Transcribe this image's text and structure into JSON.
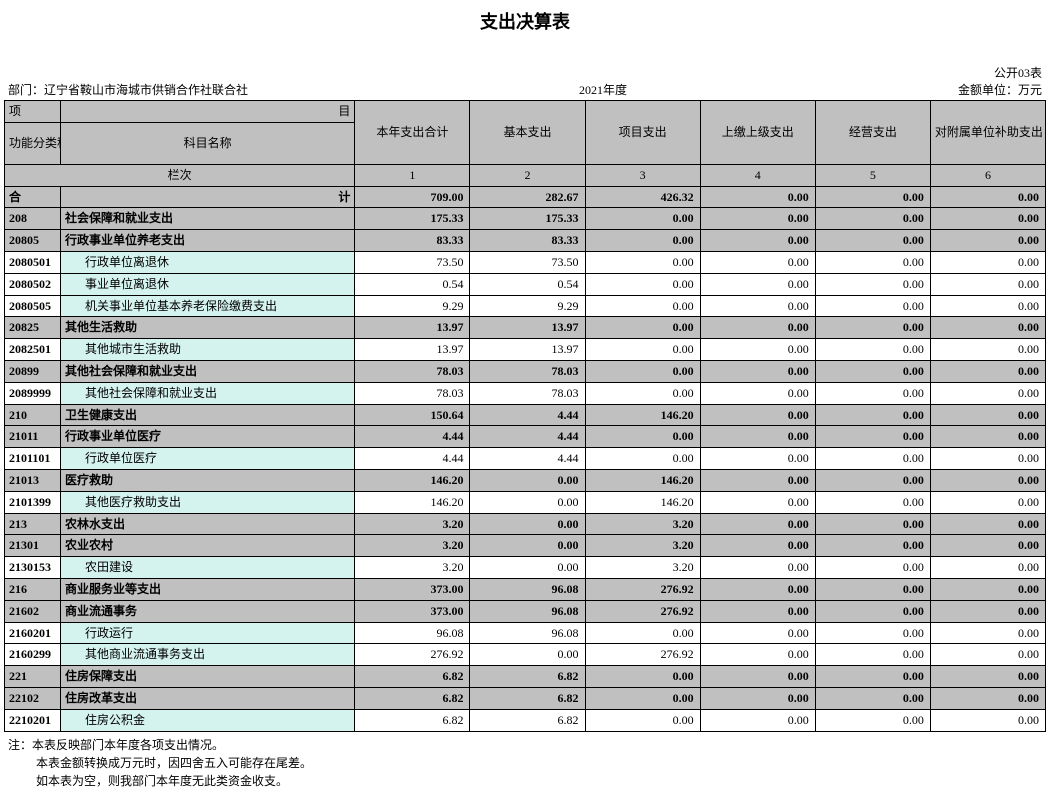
{
  "title": "支出决算表",
  "meta": {
    "top_right": "公开03表",
    "dept_label": "部门：",
    "dept_value": "辽宁省鞍山市海城市供销合作社联合社",
    "year": "2021年度",
    "unit": "金额单位：万元"
  },
  "header": {
    "project_row": "项",
    "project_row_right": "目",
    "code_label": "功能分类科目编码",
    "name_label": "科目名称",
    "cols": [
      "本年支出合计",
      "基本支出",
      "项目支出",
      "上缴上级支出",
      "经营支出",
      "对附属单位补助支出"
    ],
    "lane_label": "栏次",
    "lane_nums": [
      "1",
      "2",
      "3",
      "4",
      "5",
      "6"
    ],
    "sum_left": "合",
    "sum_right": "计"
  },
  "sum_values": [
    "709.00",
    "282.67",
    "426.32",
    "0.00",
    "0.00",
    "0.00"
  ],
  "rows": [
    {
      "code": "208",
      "name": "社会保障和就业支出",
      "indent": 0,
      "style": "gray",
      "vals": [
        "175.33",
        "175.33",
        "0.00",
        "0.00",
        "0.00",
        "0.00"
      ]
    },
    {
      "code": "20805",
      "name": "行政事业单位养老支出",
      "indent": 0,
      "style": "gray",
      "vals": [
        "83.33",
        "83.33",
        "0.00",
        "0.00",
        "0.00",
        "0.00"
      ]
    },
    {
      "code": "2080501",
      "name": "行政单位离退休",
      "indent": 1,
      "style": "detail",
      "vals": [
        "73.50",
        "73.50",
        "0.00",
        "0.00",
        "0.00",
        "0.00"
      ]
    },
    {
      "code": "2080502",
      "name": "事业单位离退休",
      "indent": 1,
      "style": "detail",
      "vals": [
        "0.54",
        "0.54",
        "0.00",
        "0.00",
        "0.00",
        "0.00"
      ]
    },
    {
      "code": "2080505",
      "name": "机关事业单位基本养老保险缴费支出",
      "indent": 1,
      "style": "detail",
      "vals": [
        "9.29",
        "9.29",
        "0.00",
        "0.00",
        "0.00",
        "0.00"
      ]
    },
    {
      "code": "20825",
      "name": "其他生活救助",
      "indent": 0,
      "style": "gray",
      "vals": [
        "13.97",
        "13.97",
        "0.00",
        "0.00",
        "0.00",
        "0.00"
      ]
    },
    {
      "code": "2082501",
      "name": "其他城市生活救助",
      "indent": 1,
      "style": "detail",
      "vals": [
        "13.97",
        "13.97",
        "0.00",
        "0.00",
        "0.00",
        "0.00"
      ]
    },
    {
      "code": "20899",
      "name": "其他社会保障和就业支出",
      "indent": 0,
      "style": "gray",
      "vals": [
        "78.03",
        "78.03",
        "0.00",
        "0.00",
        "0.00",
        "0.00"
      ]
    },
    {
      "code": "2089999",
      "name": "其他社会保障和就业支出",
      "indent": 1,
      "style": "detail",
      "vals": [
        "78.03",
        "78.03",
        "0.00",
        "0.00",
        "0.00",
        "0.00"
      ]
    },
    {
      "code": "210",
      "name": "卫生健康支出",
      "indent": 0,
      "style": "gray",
      "vals": [
        "150.64",
        "4.44",
        "146.20",
        "0.00",
        "0.00",
        "0.00"
      ]
    },
    {
      "code": "21011",
      "name": "行政事业单位医疗",
      "indent": 0,
      "style": "gray",
      "vals": [
        "4.44",
        "4.44",
        "0.00",
        "0.00",
        "0.00",
        "0.00"
      ]
    },
    {
      "code": "2101101",
      "name": "行政单位医疗",
      "indent": 1,
      "style": "detail",
      "vals": [
        "4.44",
        "4.44",
        "0.00",
        "0.00",
        "0.00",
        "0.00"
      ]
    },
    {
      "code": "21013",
      "name": "医疗救助",
      "indent": 0,
      "style": "gray",
      "vals": [
        "146.20",
        "0.00",
        "146.20",
        "0.00",
        "0.00",
        "0.00"
      ]
    },
    {
      "code": "2101399",
      "name": "其他医疗救助支出",
      "indent": 1,
      "style": "detail",
      "vals": [
        "146.20",
        "0.00",
        "146.20",
        "0.00",
        "0.00",
        "0.00"
      ]
    },
    {
      "code": "213",
      "name": "农林水支出",
      "indent": 0,
      "style": "gray",
      "vals": [
        "3.20",
        "0.00",
        "3.20",
        "0.00",
        "0.00",
        "0.00"
      ]
    },
    {
      "code": "21301",
      "name": "农业农村",
      "indent": 0,
      "style": "gray",
      "vals": [
        "3.20",
        "0.00",
        "3.20",
        "0.00",
        "0.00",
        "0.00"
      ]
    },
    {
      "code": "2130153",
      "name": "农田建设",
      "indent": 1,
      "style": "detail",
      "vals": [
        "3.20",
        "0.00",
        "3.20",
        "0.00",
        "0.00",
        "0.00"
      ]
    },
    {
      "code": "216",
      "name": "商业服务业等支出",
      "indent": 0,
      "style": "gray",
      "vals": [
        "373.00",
        "96.08",
        "276.92",
        "0.00",
        "0.00",
        "0.00"
      ]
    },
    {
      "code": "21602",
      "name": "商业流通事务",
      "indent": 0,
      "style": "gray",
      "vals": [
        "373.00",
        "96.08",
        "276.92",
        "0.00",
        "0.00",
        "0.00"
      ]
    },
    {
      "code": "2160201",
      "name": "行政运行",
      "indent": 1,
      "style": "detail",
      "vals": [
        "96.08",
        "96.08",
        "0.00",
        "0.00",
        "0.00",
        "0.00"
      ]
    },
    {
      "code": "2160299",
      "name": "其他商业流通事务支出",
      "indent": 1,
      "style": "detail",
      "vals": [
        "276.92",
        "0.00",
        "276.92",
        "0.00",
        "0.00",
        "0.00"
      ]
    },
    {
      "code": "221",
      "name": "住房保障支出",
      "indent": 0,
      "style": "gray",
      "vals": [
        "6.82",
        "6.82",
        "0.00",
        "0.00",
        "0.00",
        "0.00"
      ]
    },
    {
      "code": "22102",
      "name": "住房改革支出",
      "indent": 0,
      "style": "gray",
      "vals": [
        "6.82",
        "6.82",
        "0.00",
        "0.00",
        "0.00",
        "0.00"
      ]
    },
    {
      "code": "2210201",
      "name": "住房公积金",
      "indent": 1,
      "style": "detail",
      "vals": [
        "6.82",
        "6.82",
        "0.00",
        "0.00",
        "0.00",
        "0.00"
      ]
    }
  ],
  "footer": {
    "line1": "注：本表反映部门本年度各项支出情况。",
    "line2": "本表金额转换成万元时，因四舍五入可能存在尾差。",
    "line3": "如本表为空，则我部门本年度无此类资金收支。"
  },
  "colors": {
    "header_bg": "#c0c0c0",
    "detail_bg": "#d4f2ee",
    "border": "#000000",
    "page_bg": "#ffffff"
  },
  "typography": {
    "title_fontsize_pt": 14,
    "body_fontsize_pt": 9,
    "font_family": "SimSun"
  }
}
